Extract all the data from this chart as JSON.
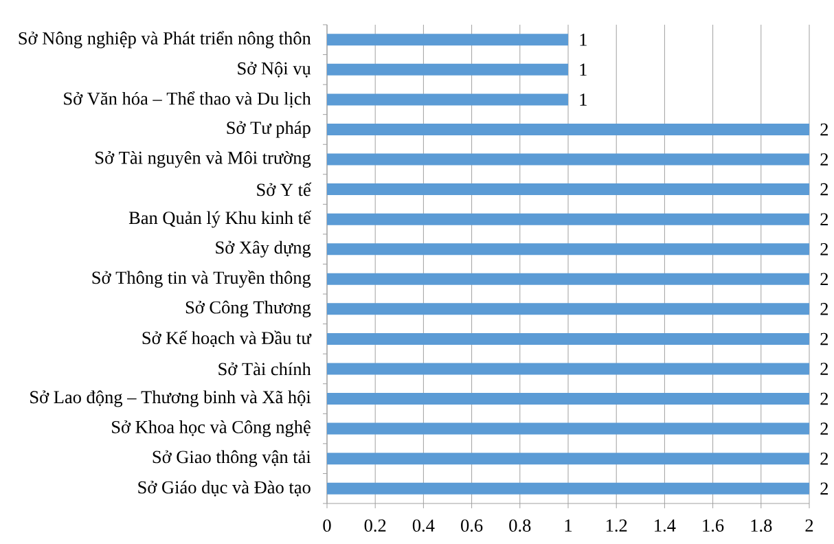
{
  "chart_data": {
    "type": "bar",
    "orientation": "horizontal",
    "categories": [
      "Sở Nông nghiệp và Phát triển nông thôn",
      "Sở Nội vụ",
      "Sở Văn hóa – Thể thao và Du lịch",
      "Sở Tư pháp",
      "Sở Tài nguyên và Môi trường",
      "Sở Y tế",
      "Ban Quản lý Khu kinh tế",
      "Sở Xây dựng",
      "Sở Thông tin và Truyền thông",
      "Sở Công Thương",
      "Sở Kế hoạch và Đầu tư",
      "Sở Tài chính",
      "Sở Lao động – Thương binh và Xã hội",
      "Sở Khoa học và Công nghệ",
      "Sở Giao thông vận tải",
      "Sở Giáo dục và Đào tạo"
    ],
    "values": [
      1,
      1,
      1,
      2,
      2,
      2,
      2,
      2,
      2,
      2,
      2,
      2,
      2,
      2,
      2,
      2
    ],
    "color": "#5b9bd5",
    "xlim": [
      0,
      2
    ],
    "xticks": [
      0,
      0.2,
      0.4,
      0.6,
      0.8,
      1,
      1.2,
      1.4,
      1.6,
      1.8,
      2
    ],
    "grid": "x",
    "data_labels": true
  }
}
